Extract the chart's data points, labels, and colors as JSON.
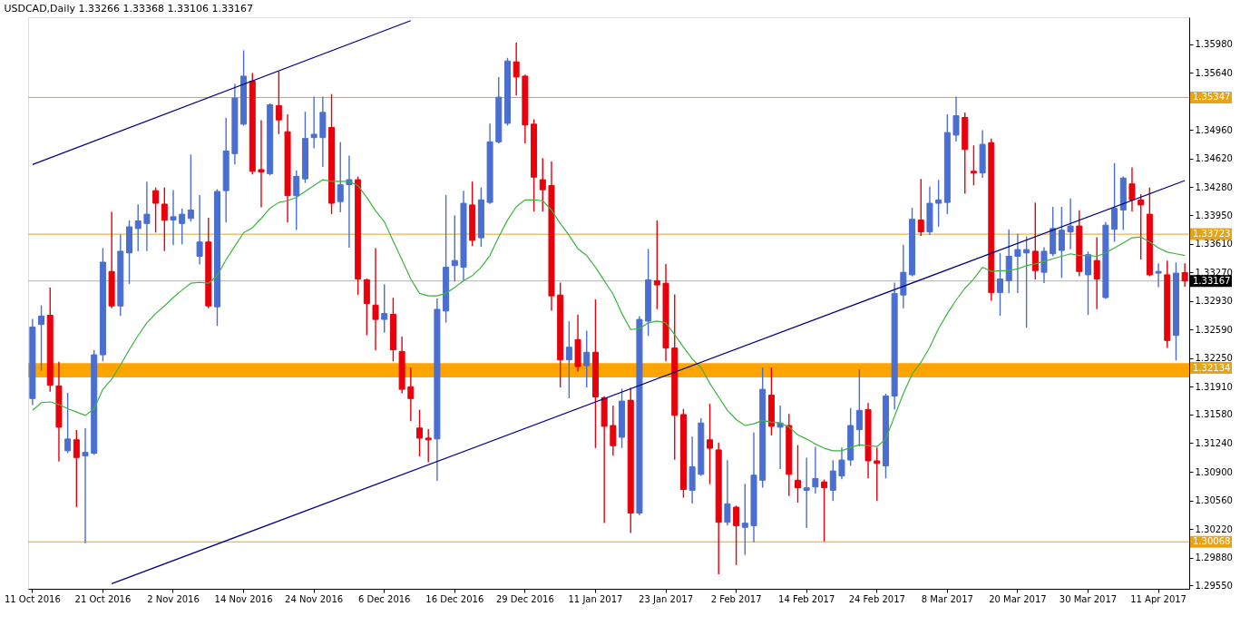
{
  "chart_data": {
    "type": "candlestick",
    "title": "USDCAD,Daily  1.33266 1.33368 1.33106 1.33167",
    "categories": [
      "11 Oct 2016",
      null,
      null,
      null,
      null,
      null,
      null,
      null,
      "21 Oct 2016",
      null,
      null,
      null,
      null,
      null,
      null,
      null,
      "2 Nov 2016",
      null,
      null,
      null,
      null,
      null,
      null,
      null,
      "14 Nov 2016",
      null,
      null,
      null,
      null,
      null,
      null,
      null,
      "24 Nov 2016",
      null,
      null,
      null,
      null,
      null,
      null,
      null,
      "6 Dec 2016",
      null,
      null,
      null,
      null,
      null,
      null,
      null,
      "16 Dec 2016",
      null,
      null,
      null,
      null,
      null,
      null,
      null,
      "29 Dec 2016",
      null,
      null,
      null,
      null,
      null,
      null,
      null,
      "11 Jan 2017",
      null,
      null,
      null,
      null,
      null,
      null,
      null,
      "23 Jan 2017",
      null,
      null,
      null,
      null,
      null,
      null,
      null,
      "2 Feb 2017",
      null,
      null,
      null,
      null,
      null,
      null,
      null,
      "14 Feb 2017",
      null,
      null,
      null,
      null,
      null,
      null,
      null,
      "24 Feb 2017",
      null,
      null,
      null,
      null,
      null,
      null,
      null,
      "8 Mar 2017",
      null,
      null,
      null,
      null,
      null,
      null,
      null,
      "20 Mar 2017",
      null,
      null,
      null,
      null,
      null,
      null,
      null,
      "30 Mar 2017",
      null,
      null,
      null,
      null,
      null,
      null,
      null,
      "11 Apr 2017",
      null,
      null,
      null
    ],
    "ohlc": [
      [
        1.3177,
        1.3271,
        1.317,
        1.3262
      ],
      [
        1.3265,
        1.3287,
        1.3211,
        1.3275
      ],
      [
        1.3276,
        1.3308,
        1.3186,
        1.3193
      ],
      [
        1.3192,
        1.322,
        1.3103,
        1.3143
      ],
      [
        1.3115,
        1.3183,
        1.3113,
        1.3129
      ],
      [
        1.3128,
        1.3139,
        1.3049,
        1.3107
      ],
      [
        1.3109,
        1.3141,
        1.3006,
        1.3113
      ],
      [
        1.3112,
        1.3234,
        1.3111,
        1.3229
      ],
      [
        1.3229,
        1.3355,
        1.3222,
        1.3339
      ],
      [
        1.3328,
        1.3398,
        1.3285,
        1.3287
      ],
      [
        1.3287,
        1.3371,
        1.3276,
        1.3352
      ],
      [
        1.335,
        1.3388,
        1.3314,
        1.3381
      ],
      [
        1.3379,
        1.3407,
        1.3353,
        1.3388
      ],
      [
        1.3385,
        1.3434,
        1.3353,
        1.3396
      ],
      [
        1.3424,
        1.3427,
        1.3375,
        1.3409
      ],
      [
        1.3408,
        1.3427,
        1.3353,
        1.3389
      ],
      [
        1.3389,
        1.3424,
        1.336,
        1.3393
      ],
      [
        1.3385,
        1.3402,
        1.3361,
        1.3396
      ],
      [
        1.3391,
        1.3466,
        1.3388,
        1.3401
      ],
      [
        1.3346,
        1.3418,
        1.3337,
        1.3363
      ],
      [
        1.3363,
        1.3391,
        1.3285,
        1.3287
      ],
      [
        1.3286,
        1.3425,
        1.3264,
        1.3423
      ],
      [
        1.3424,
        1.351,
        1.3387,
        1.3471
      ],
      [
        1.3468,
        1.355,
        1.3456,
        1.3534
      ],
      [
        1.3503,
        1.359,
        1.3502,
        1.356
      ],
      [
        1.3554,
        1.3563,
        1.3444,
        1.3447
      ],
      [
        1.3449,
        1.3507,
        1.3405,
        1.3446
      ],
      [
        1.3444,
        1.3527,
        1.3443,
        1.3526
      ],
      [
        1.3525,
        1.3565,
        1.3492,
        1.3508
      ],
      [
        1.3494,
        1.3514,
        1.3387,
        1.3418
      ],
      [
        1.3418,
        1.3447,
        1.3378,
        1.3441
      ],
      [
        1.3438,
        1.3517,
        1.3434,
        1.3486
      ],
      [
        1.3487,
        1.3535,
        1.3475,
        1.3491
      ],
      [
        1.3487,
        1.3535,
        1.3453,
        1.3517
      ],
      [
        1.3499,
        1.3538,
        1.3397,
        1.3409
      ],
      [
        1.3411,
        1.3481,
        1.3399,
        1.3431
      ],
      [
        1.3431,
        1.3465,
        1.3357,
        1.3437
      ],
      [
        1.3437,
        1.344,
        1.3301,
        1.3319
      ],
      [
        1.3318,
        1.3319,
        1.3253,
        1.329
      ],
      [
        1.3288,
        1.3355,
        1.3235,
        1.3271
      ],
      [
        1.3271,
        1.3312,
        1.3256,
        1.3278
      ],
      [
        1.3277,
        1.3296,
        1.3222,
        1.3235
      ],
      [
        1.3233,
        1.325,
        1.3184,
        1.3188
      ],
      [
        1.3191,
        1.3213,
        1.3151,
        1.3177
      ],
      [
        1.3142,
        1.3163,
        1.3109,
        1.313
      ],
      [
        1.313,
        1.314,
        1.3102,
        1.3128
      ],
      [
        1.3129,
        1.3295,
        1.308,
        1.3283
      ],
      [
        1.3281,
        1.3418,
        1.3268,
        1.3333
      ],
      [
        1.3335,
        1.3394,
        1.3317,
        1.3341
      ],
      [
        1.3333,
        1.3423,
        1.3318,
        1.3409
      ],
      [
        1.3407,
        1.3434,
        1.3359,
        1.3365
      ],
      [
        1.3368,
        1.3427,
        1.3358,
        1.3413
      ],
      [
        1.341,
        1.3503,
        1.3409,
        1.3482
      ],
      [
        1.3482,
        1.3558,
        1.3481,
        1.3535
      ],
      [
        1.3504,
        1.3581,
        1.3502,
        1.3578
      ],
      [
        1.3577,
        1.3599,
        1.3538,
        1.3559
      ],
      [
        1.356,
        1.3561,
        1.3481,
        1.3502
      ],
      [
        1.3503,
        1.3508,
        1.34,
        1.344
      ],
      [
        1.3437,
        1.3462,
        1.34,
        1.3425
      ],
      [
        1.343,
        1.3458,
        1.3282,
        1.3299
      ],
      [
        1.33,
        1.3314,
        1.3191,
        1.3223
      ],
      [
        1.3223,
        1.3268,
        1.3178,
        1.3238
      ],
      [
        1.3247,
        1.3276,
        1.321,
        1.3215
      ],
      [
        1.3216,
        1.3257,
        1.3191,
        1.3232
      ],
      [
        1.3232,
        1.3294,
        1.3119,
        1.3179
      ],
      [
        1.3178,
        1.3179,
        1.303,
        1.3144
      ],
      [
        1.3145,
        1.3168,
        1.311,
        1.3121
      ],
      [
        1.3131,
        1.3188,
        1.3119,
        1.3174
      ],
      [
        1.3175,
        1.3189,
        1.3018,
        1.3041
      ],
      [
        1.3041,
        1.3274,
        1.3039,
        1.3271
      ],
      [
        1.3269,
        1.3354,
        1.3252,
        1.3318
      ],
      [
        1.3317,
        1.3388,
        1.3284,
        1.3312
      ],
      [
        1.3314,
        1.3336,
        1.3222,
        1.3237
      ],
      [
        1.3237,
        1.33,
        1.3105,
        1.3157
      ],
      [
        1.3158,
        1.3164,
        1.306,
        1.3069
      ],
      [
        1.3068,
        1.3131,
        1.3053,
        1.3096
      ],
      [
        1.3087,
        1.3153,
        1.3086,
        1.3148
      ],
      [
        1.3128,
        1.317,
        1.3076,
        1.3118
      ],
      [
        1.3116,
        1.3124,
        1.2969,
        1.303
      ],
      [
        1.303,
        1.3103,
        1.3027,
        1.3052
      ],
      [
        1.3048,
        1.3049,
        1.298,
        1.3026
      ],
      [
        1.3024,
        1.3075,
        1.2992,
        1.3029
      ],
      [
        1.3026,
        1.3136,
        1.3007,
        1.3086
      ],
      [
        1.308,
        1.3213,
        1.3072,
        1.3188
      ],
      [
        1.3181,
        1.3213,
        1.3134,
        1.3144
      ],
      [
        1.3143,
        1.3168,
        1.3094,
        1.3148
      ],
      [
        1.3145,
        1.3158,
        1.3062,
        1.3087
      ],
      [
        1.308,
        1.3121,
        1.3054,
        1.3071
      ],
      [
        1.3068,
        1.3106,
        1.3024,
        1.3071
      ],
      [
        1.3072,
        1.3119,
        1.3065,
        1.3082
      ],
      [
        1.3078,
        1.308,
        1.3008,
        1.3071
      ],
      [
        1.3068,
        1.3103,
        1.3056,
        1.3091
      ],
      [
        1.3085,
        1.3118,
        1.3082,
        1.3104
      ],
      [
        1.3104,
        1.3165,
        1.3098,
        1.3145
      ],
      [
        1.314,
        1.3211,
        1.3121,
        1.3163
      ],
      [
        1.3164,
        1.3171,
        1.3083,
        1.3103
      ],
      [
        1.3103,
        1.3118,
        1.3056,
        1.31
      ],
      [
        1.3097,
        1.3182,
        1.3083,
        1.318
      ],
      [
        1.318,
        1.3314,
        1.3165,
        1.3302
      ],
      [
        1.33,
        1.3359,
        1.3285,
        1.3327
      ],
      [
        1.3324,
        1.3403,
        1.3323,
        1.339
      ],
      [
        1.3389,
        1.3437,
        1.3371,
        1.3375
      ],
      [
        1.3375,
        1.3428,
        1.3372,
        1.3409
      ],
      [
        1.3409,
        1.3436,
        1.3382,
        1.3413
      ],
      [
        1.341,
        1.3514,
        1.3397,
        1.3493
      ],
      [
        1.349,
        1.3535,
        1.3483,
        1.3513
      ],
      [
        1.3511,
        1.3516,
        1.3421,
        1.3473
      ],
      [
        1.3447,
        1.3477,
        1.3431,
        1.3445
      ],
      [
        1.3445,
        1.3495,
        1.344,
        1.3479
      ],
      [
        1.3481,
        1.3485,
        1.3294,
        1.3303
      ],
      [
        1.3303,
        1.3349,
        1.3276,
        1.3319
      ],
      [
        1.3317,
        1.3377,
        1.3303,
        1.3346
      ],
      [
        1.3346,
        1.3372,
        1.3303,
        1.3354
      ],
      [
        1.335,
        1.3369,
        1.3262,
        1.3354
      ],
      [
        1.3352,
        1.3409,
        1.3319,
        1.3329
      ],
      [
        1.3327,
        1.3356,
        1.3315,
        1.3352
      ],
      [
        1.3349,
        1.3404,
        1.3347,
        1.3379
      ],
      [
        1.3353,
        1.3404,
        1.3321,
        1.3377
      ],
      [
        1.3375,
        1.3414,
        1.3355,
        1.3382
      ],
      [
        1.3382,
        1.34,
        1.3323,
        1.3328
      ],
      [
        1.3324,
        1.3351,
        1.3277,
        1.3348
      ],
      [
        1.3341,
        1.3368,
        1.3284,
        1.3319
      ],
      [
        1.3297,
        1.3386,
        1.3296,
        1.3383
      ],
      [
        1.3378,
        1.3456,
        1.3364,
        1.3403
      ],
      [
        1.3401,
        1.344,
        1.3378,
        1.3439
      ],
      [
        1.3432,
        1.3451,
        1.34,
        1.3413
      ],
      [
        1.3413,
        1.3419,
        1.3343,
        1.3407
      ],
      [
        1.3396,
        1.3427,
        1.3323,
        1.3324
      ],
      [
        1.3326,
        1.3337,
        1.331,
        1.3328
      ],
      [
        1.3324,
        1.334,
        1.3238,
        1.3246
      ],
      [
        1.3252,
        1.3338,
        1.3223,
        1.3326
      ],
      [
        1.33266,
        1.33368,
        1.33106,
        1.33167
      ]
    ],
    "colors": [
      "#4a6fd0",
      "#4a6fd0",
      "#e8000b",
      "#e8000b",
      "#4a6fd0",
      "#e8000b",
      "#4a6fd0",
      "#4a6fd0",
      "#4a6fd0",
      "#e8000b",
      "#4a6fd0",
      "#4a6fd0",
      "#4a6fd0",
      "#4a6fd0",
      "#e8000b",
      "#e8000b",
      "#4a6fd0",
      "#4a6fd0",
      "#4a6fd0",
      "#4a6fd0",
      "#e8000b",
      "#4a6fd0",
      "#4a6fd0",
      "#4a6fd0",
      "#4a6fd0",
      "#e8000b",
      "#e8000b",
      "#4a6fd0",
      "#e8000b",
      "#e8000b",
      "#4a6fd0",
      "#4a6fd0",
      "#4a6fd0",
      "#4a6fd0",
      "#e8000b",
      "#4a6fd0",
      "#4a6fd0",
      "#e8000b",
      "#e8000b",
      "#e8000b",
      "#4a6fd0",
      "#e8000b",
      "#e8000b",
      "#e8000b",
      "#e8000b",
      "#e8000b",
      "#4a6fd0",
      "#4a6fd0",
      "#4a6fd0",
      "#4a6fd0",
      "#e8000b",
      "#4a6fd0",
      "#4a6fd0",
      "#4a6fd0",
      "#4a6fd0",
      "#e8000b",
      "#e8000b",
      "#e8000b",
      "#e8000b",
      "#e8000b",
      "#e8000b",
      "#4a6fd0",
      "#e8000b",
      "#4a6fd0",
      "#e8000b",
      "#e8000b",
      "#e8000b",
      "#4a6fd0",
      "#e8000b",
      "#4a6fd0",
      "#4a6fd0",
      "#e8000b",
      "#e8000b",
      "#e8000b",
      "#e8000b",
      "#4a6fd0",
      "#4a6fd0",
      "#e8000b",
      "#e8000b",
      "#4a6fd0",
      "#e8000b",
      "#4a6fd0",
      "#4a6fd0",
      "#4a6fd0",
      "#e8000b",
      "#4a6fd0",
      "#e8000b",
      "#e8000b",
      "#4a6fd0",
      "#4a6fd0",
      "#e8000b",
      "#4a6fd0",
      "#4a6fd0",
      "#4a6fd0",
      "#4a6fd0",
      "#e8000b",
      "#e8000b",
      "#4a6fd0",
      "#4a6fd0",
      "#4a6fd0",
      "#4a6fd0",
      "#e8000b",
      "#4a6fd0",
      "#4a6fd0",
      "#4a6fd0",
      "#4a6fd0",
      "#e8000b",
      "#e8000b",
      "#4a6fd0",
      "#e8000b",
      "#4a6fd0",
      "#4a6fd0",
      "#4a6fd0",
      "#4a6fd0",
      "#e8000b",
      "#4a6fd0",
      "#4a6fd0",
      "#4a6fd0",
      "#4a6fd0",
      "#e8000b",
      "#4a6fd0",
      "#e8000b",
      "#4a6fd0",
      "#4a6fd0",
      "#4a6fd0",
      "#e8000b",
      "#e8000b",
      "#e8000b",
      "#4a6fd0",
      "#e8000b",
      "#4a6fd0",
      "#e8000b"
    ],
    "series": [
      {
        "type": "line",
        "color": "#3cb43c",
        "values": [
          1.3163,
          1.3172,
          1.3173,
          1.317,
          1.3165,
          1.3161,
          1.3157,
          1.3165,
          1.3188,
          1.32,
          1.3217,
          1.3235,
          1.3252,
          1.3267,
          1.3278,
          1.3287,
          1.3297,
          1.3306,
          1.3314,
          1.3315,
          1.3314,
          1.3323,
          1.3342,
          1.3358,
          1.3374,
          1.338,
          1.3391,
          1.3403,
          1.341,
          1.3412,
          1.3416,
          1.3423,
          1.343,
          1.3437,
          1.3435,
          1.3435,
          1.3435,
          1.343,
          1.3416,
          1.34,
          1.3387,
          1.3364,
          1.3342,
          1.3319,
          1.3302,
          1.3299,
          1.3299,
          1.3302,
          1.3309,
          1.3317,
          1.3323,
          1.3333,
          1.3347,
          1.3369,
          1.3389,
          1.3405,
          1.3413,
          1.3413,
          1.3412,
          1.3401,
          1.3385,
          1.3371,
          1.3355,
          1.3347,
          1.3333,
          1.3317,
          1.3301,
          1.3278,
          1.3259,
          1.326,
          1.3267,
          1.3269,
          1.3267,
          1.3253,
          1.3238,
          1.3224,
          1.3214,
          1.3195,
          1.3179,
          1.3163,
          1.3152,
          1.3145,
          1.3147,
          1.3151,
          1.3149,
          1.3148,
          1.3143,
          1.3134,
          1.3129,
          1.3123,
          1.3118,
          1.3115,
          1.3115,
          1.3119,
          1.3122,
          1.3121,
          1.312,
          1.3129,
          1.3156,
          1.3183,
          1.3206,
          1.322,
          1.3238,
          1.326,
          1.3278,
          1.3294,
          1.3308,
          1.3319,
          1.3333,
          1.3328,
          1.3329,
          1.3329,
          1.3331,
          1.3335,
          1.3337,
          1.334,
          1.3343,
          1.3346,
          1.3349,
          1.3347,
          1.3347,
          1.3346,
          1.335,
          1.3356,
          1.3362,
          1.3368,
          1.3369,
          1.3363,
          1.3356,
          1.3351,
          1.3349,
          1.3347
        ]
      },
      {
        "type": "line",
        "color": "#000080",
        "values": [
          1.3455,
          null,
          null,
          null,
          null,
          null,
          null,
          null,
          null,
          null,
          null,
          null,
          null,
          null,
          null,
          null,
          null,
          null,
          null,
          null,
          null,
          null,
          null,
          null,
          null,
          null,
          null,
          null,
          null,
          null,
          null,
          null,
          null,
          null,
          null,
          null,
          null,
          null,
          null,
          null,
          null,
          null,
          null,
          1.3626,
          null,
          null,
          null,
          null,
          null,
          null,
          null,
          null,
          null,
          null,
          null,
          null,
          null,
          null,
          null,
          null,
          null,
          null,
          null,
          null,
          null,
          null,
          null,
          null,
          null,
          null,
          null,
          null,
          null,
          null,
          null,
          null,
          null,
          null,
          null,
          null,
          null,
          null,
          null,
          null,
          null,
          null,
          null,
          null,
          null,
          null,
          null,
          null,
          null,
          null,
          null,
          null,
          null,
          null,
          null,
          null,
          null,
          null,
          null,
          null,
          null,
          null,
          null,
          null,
          null,
          null,
          null,
          null,
          null,
          null,
          null,
          null,
          null,
          null,
          null,
          null,
          null,
          null,
          null,
          null,
          null,
          null,
          null,
          null,
          null,
          null,
          null,
          null
        ]
      },
      {
        "type": "line",
        "color": "#000080",
        "values": [
          null,
          null,
          null,
          null,
          null,
          null,
          null,
          null,
          null,
          1.2957,
          null,
          null,
          null,
          null,
          null,
          null,
          null,
          null,
          null,
          null,
          null,
          null,
          null,
          null,
          null,
          null,
          null,
          null,
          null,
          null,
          null,
          null,
          null,
          null,
          null,
          null,
          null,
          null,
          null,
          null,
          null,
          null,
          null,
          null,
          null,
          null,
          null,
          null,
          null,
          null,
          null,
          null,
          null,
          null,
          null,
          null,
          null,
          null,
          null,
          null,
          null,
          null,
          null,
          null,
          null,
          null,
          null,
          null,
          null,
          null,
          null,
          null,
          null,
          null,
          null,
          null,
          null,
          null,
          null,
          null,
          null,
          null,
          null,
          null,
          null,
          null,
          null,
          null,
          null,
          null,
          null,
          null,
          null,
          null,
          null,
          null,
          null,
          null,
          null,
          null,
          null,
          null,
          null,
          null,
          null,
          null,
          null,
          null,
          null,
          null,
          null,
          null,
          null,
          null,
          null,
          null,
          null,
          null,
          null,
          null,
          null,
          null,
          null,
          null,
          null,
          null,
          null,
          null,
          null,
          null,
          null,
          1.3436
        ]
      }
    ],
    "ylim": [
      1.2951,
      1.363
    ],
    "yticks": [
      {
        "value": 1.2955,
        "label": "1.29550"
      },
      {
        "value": 1.2988,
        "label": "1.29880"
      },
      {
        "value": 1.3022,
        "label": "1.30220"
      },
      {
        "value": 1.3056,
        "label": "1.30560"
      },
      {
        "value": 1.309,
        "label": "1.30900"
      },
      {
        "value": 1.3124,
        "label": "1.31240"
      },
      {
        "value": 1.3158,
        "label": "1.31580"
      },
      {
        "value": 1.3191,
        "label": "1.31910"
      },
      {
        "value": 1.3225,
        "label": "1.32250"
      },
      {
        "value": 1.3259,
        "label": "1.32590"
      },
      {
        "value": 1.3293,
        "label": "1.32930"
      },
      {
        "value": 1.3327,
        "label": "1.33270"
      },
      {
        "value": 1.3361,
        "label": "1.33610"
      },
      {
        "value": 1.3395,
        "label": "1.33950"
      },
      {
        "value": 1.3428,
        "label": "1.34280"
      },
      {
        "value": 1.3462,
        "label": "1.34620"
      },
      {
        "value": 1.3496,
        "label": "1.34960"
      },
      {
        "value": 1.3564,
        "label": "1.35640"
      },
      {
        "value": 1.3598,
        "label": "1.35980"
      }
    ],
    "ref_lines": [
      {
        "axis": "y",
        "value": 1.35347,
        "label": "1.35347",
        "color": "#e8a317"
      },
      {
        "axis": "y",
        "value": 1.33723,
        "label": "1.33723",
        "color": "#e8a317"
      },
      {
        "axis": "y",
        "value": 1.33167,
        "label": "1.33167",
        "color": "#b0b0b0"
      },
      {
        "axis": "y",
        "value": 1.32134,
        "label": "1.32134",
        "color": "#e8a317"
      },
      {
        "axis": "y",
        "value": 1.30068,
        "label": "1.30068",
        "color": "#e8a317"
      }
    ],
    "bands": [
      {
        "axis": "y",
        "from": 1.3202,
        "to": 1.3219,
        "color": "#ffa500"
      }
    ],
    "grid": false
  }
}
